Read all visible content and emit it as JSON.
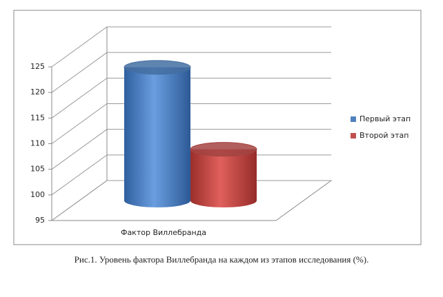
{
  "chart_data": {
    "type": "bar3d",
    "categories": [
      "Фактор Виллебранда"
    ],
    "series": [
      {
        "name": "Первый этап",
        "color": "#4f81bd",
        "values": [
          121
        ]
      },
      {
        "name": "Второй этап",
        "color": "#c0504d",
        "values": [
          105
        ]
      }
    ],
    "ylim": [
      95,
      125
    ],
    "yticks": [
      95,
      100,
      105,
      110,
      115,
      120,
      125
    ],
    "grid": true,
    "legend": "right",
    "caption": "Рис.1. Уровень фактора Виллебранда на каждом из этапов исследования (%)."
  }
}
